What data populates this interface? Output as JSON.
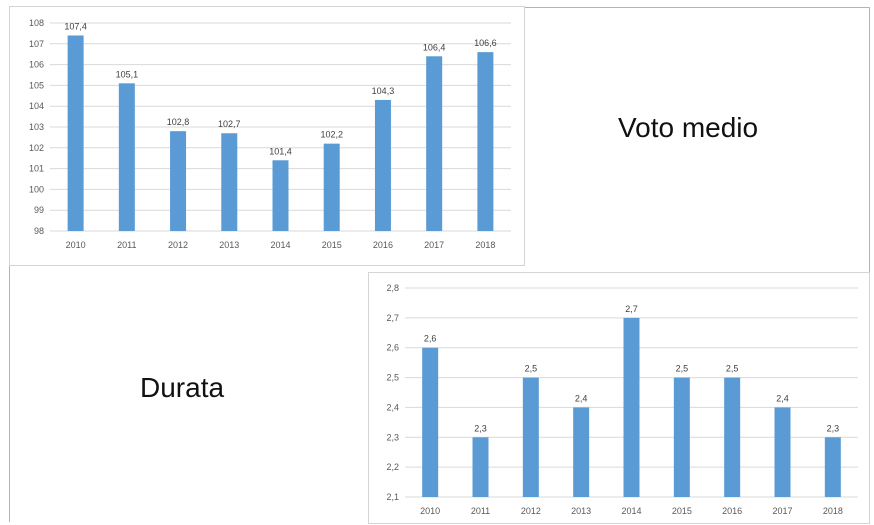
{
  "labels": {
    "voto_medio": "Voto medio",
    "durata": "Durata"
  },
  "colors": {
    "bar": "#5b9bd5",
    "grid": "#d9d9d9",
    "frame": "#9fb8d9"
  },
  "chart_data": [
    {
      "type": "bar",
      "title": "",
      "xlabel": "",
      "ylabel": "",
      "categories": [
        "2010",
        "2011",
        "2012",
        "2013",
        "2014",
        "2015",
        "2016",
        "2017",
        "2018"
      ],
      "values": [
        107.4,
        105.1,
        102.8,
        102.7,
        101.4,
        102.2,
        104.3,
        106.4,
        106.6
      ],
      "value_labels": [
        "107,4",
        "105,1",
        "102,8",
        "102,7",
        "101,4",
        "102,2",
        "104,3",
        "106,4",
        "106,6"
      ],
      "ylim": [
        98,
        108
      ],
      "yticks": [
        "98",
        "99",
        "100",
        "101",
        "102",
        "103",
        "104",
        "105",
        "106",
        "107",
        "108"
      ],
      "grid": true,
      "legend": "none"
    },
    {
      "type": "bar",
      "title": "",
      "xlabel": "",
      "ylabel": "",
      "categories": [
        "2010",
        "2011",
        "2012",
        "2013",
        "2014",
        "2015",
        "2016",
        "2017",
        "2018"
      ],
      "values": [
        2.6,
        2.3,
        2.5,
        2.4,
        2.7,
        2.5,
        2.5,
        2.4,
        2.3
      ],
      "value_labels": [
        "2,6",
        "2,3",
        "2,5",
        "2,4",
        "2,7",
        "2,5",
        "2,5",
        "2,4",
        "2,3"
      ],
      "ylim": [
        2.1,
        2.8
      ],
      "yticks": [
        "2,1",
        "2,2",
        "2,3",
        "2,4",
        "2,5",
        "2,6",
        "2,7",
        "2,8"
      ],
      "grid": true,
      "legend": "none"
    }
  ]
}
